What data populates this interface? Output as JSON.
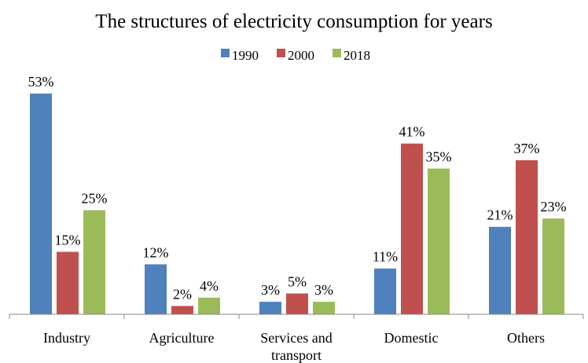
{
  "chart_data": {
    "type": "bar",
    "title": "The structures of electricity consumption for years",
    "xlabel": "",
    "ylabel": "",
    "ylim": [
      0,
      55
    ],
    "grid": false,
    "legend_position": "top",
    "categories": [
      [
        "Industry"
      ],
      [
        "Agriculture"
      ],
      [
        "Services and",
        "transport"
      ],
      [
        "Domestic"
      ],
      [
        "Others"
      ]
    ],
    "series": [
      {
        "name": "1990",
        "color": "#4f81bd",
        "values": [
          53,
          12,
          3,
          11,
          21
        ],
        "labels": [
          "53%",
          "12%",
          "3%",
          "11%",
          "21%"
        ]
      },
      {
        "name": "2000",
        "color": "#c0504d",
        "values": [
          15,
          2,
          5,
          41,
          37
        ],
        "labels": [
          "15%",
          "2%",
          "5%",
          "41%",
          "37%"
        ]
      },
      {
        "name": "2018",
        "color": "#9bbb59",
        "values": [
          25,
          4,
          3,
          35,
          23
        ],
        "labels": [
          "25%",
          "4%",
          "3%",
          "35%",
          "23%"
        ]
      }
    ]
  }
}
